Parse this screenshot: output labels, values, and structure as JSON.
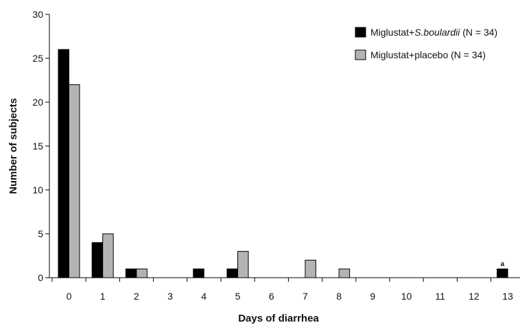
{
  "chart_data": {
    "type": "bar",
    "xlabel": "Days of diarrhea",
    "ylabel": "Number of subjects",
    "ylim": [
      0,
      30
    ],
    "yticks": [
      "0",
      "5",
      "10",
      "15",
      "20",
      "25",
      "30"
    ],
    "categories": [
      "0",
      "1",
      "2",
      "3",
      "4",
      "5",
      "6",
      "7",
      "8",
      "9",
      "10",
      "11",
      "12",
      "13"
    ],
    "series": [
      {
        "name": "Miglustat+S.boulardii (N = 34)",
        "name_parts": [
          "Miglustat+",
          "S.boulardii",
          " (N = 34)"
        ],
        "color": "#000000",
        "values": [
          26,
          4,
          1,
          0,
          1,
          1,
          0,
          0,
          0,
          0,
          0,
          0,
          0,
          1
        ]
      },
      {
        "name": "Miglustat+placebo (N = 34)",
        "color": "#b3b3b3",
        "values": [
          22,
          5,
          1,
          0,
          0,
          3,
          0,
          2,
          1,
          0,
          0,
          0,
          0,
          0
        ]
      }
    ],
    "annotations": [
      {
        "category": "13",
        "series": 0,
        "text": "a"
      }
    ],
    "legend_position": "top-right",
    "grid": false
  }
}
